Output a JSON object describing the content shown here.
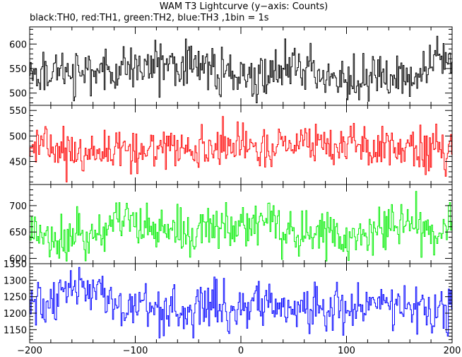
{
  "chart_data": {
    "type": "line",
    "title": "WAM T3 Lightcurve (y−axis: Counts)",
    "subtitle": "black:TH0, red:TH1, green:TH2, blue:TH3 ,1bin = 1s",
    "xlabel": "",
    "ylabel": "",
    "xlim": [
      -200,
      200
    ],
    "x_ticks": [
      -200,
      -100,
      0,
      100,
      200
    ],
    "x_tick_labels": [
      "−200",
      "−100",
      "0",
      "100",
      "200"
    ],
    "bin_seconds": 1,
    "grid": false,
    "panels": [
      {
        "name": "TH0",
        "color": "#000000",
        "ylim": [
          475,
          635
        ],
        "y_ticks": [
          500,
          550,
          600
        ],
        "y_tick_labels": [
          "500",
          "550",
          "600"
        ],
        "mean": 545,
        "spread": 22,
        "min": 480,
        "max": 630
      },
      {
        "name": "TH1",
        "color": "#ff0000",
        "ylim": [
          405,
          560
        ],
        "y_ticks": [
          450,
          500,
          550
        ],
        "y_tick_labels": [
          "450",
          "500",
          "550"
        ],
        "mean": 475,
        "spread": 20,
        "min": 410,
        "max": 560
      },
      {
        "name": "TH2",
        "color": "#00ee00",
        "ylim": [
          590,
          740
        ],
        "y_ticks": [
          600,
          650,
          700
        ],
        "y_tick_labels": [
          "600",
          "650",
          "700"
        ],
        "mean": 655,
        "spread": 22,
        "min": 595,
        "max": 738
      },
      {
        "name": "TH3",
        "color": "#0000ff",
        "ylim": [
          1110,
          1350
        ],
        "y_ticks": [
          1150,
          1200,
          1250,
          1300,
          1350
        ],
        "y_tick_labels": [
          "1150",
          "1200",
          "1250",
          "1300",
          "1350"
        ],
        "mean": 1220,
        "spread": 35,
        "min": 1125,
        "max": 1345
      }
    ]
  }
}
